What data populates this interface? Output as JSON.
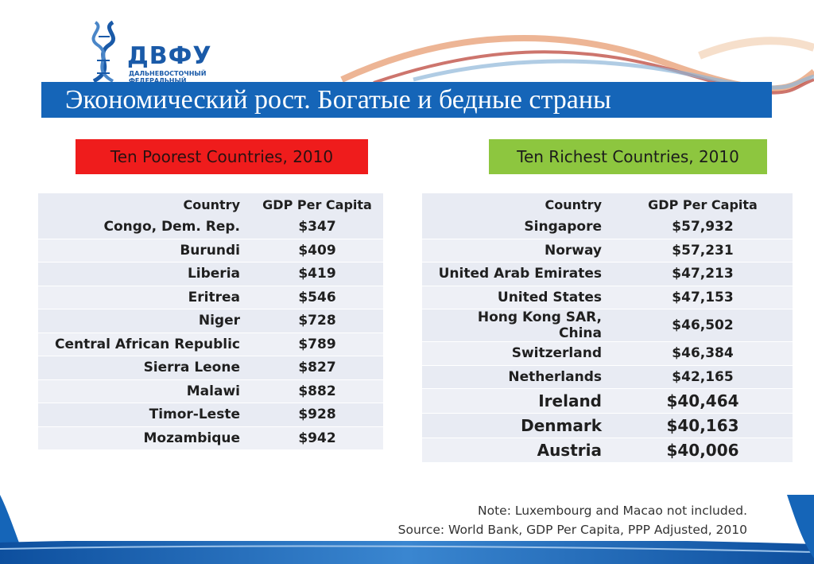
{
  "logo": {
    "name": "ДВФУ",
    "subtitle_lines": [
      "ДАЛЬНЕВОСТОЧНЫЙ",
      "ФЕДЕРАЛЬНЫЙ"
    ]
  },
  "title": "Экономический рост.  Богатые и бедные страны",
  "poorest": {
    "label": "Ten Poorest Countries, 2010",
    "header": {
      "country": "Country",
      "gdp": "GDP Per Capita"
    },
    "rows": [
      {
        "country": "Congo, Dem. Rep.",
        "gdp": "$347"
      },
      {
        "country": "Burundi",
        "gdp": "$409"
      },
      {
        "country": "Liberia",
        "gdp": "$419"
      },
      {
        "country": "Eritrea",
        "gdp": "$546"
      },
      {
        "country": "Niger",
        "gdp": "$728"
      },
      {
        "country": "Central African Republic",
        "gdp": "$789"
      },
      {
        "country": "Sierra Leone",
        "gdp": "$827"
      },
      {
        "country": "Malawi",
        "gdp": "$882"
      },
      {
        "country": "Timor-Leste",
        "gdp": "$928"
      },
      {
        "country": "Mozambique",
        "gdp": "$942"
      }
    ]
  },
  "richest": {
    "label": "Ten Richest Countries, 2010",
    "header": {
      "country": "Country",
      "gdp": "GDP Per Capita"
    },
    "rows": [
      {
        "country": "Singapore",
        "gdp": "$57,932"
      },
      {
        "country": "Norway",
        "gdp": "$57,231"
      },
      {
        "country": "United Arab Emirates",
        "gdp": "$47,213"
      },
      {
        "country": "United States",
        "gdp": "$47,153"
      },
      {
        "country": "Hong Kong SAR, China",
        "gdp": "$46,502"
      },
      {
        "country": "Switzerland",
        "gdp": "$46,384"
      },
      {
        "country": "Netherlands",
        "gdp": "$42,165"
      },
      {
        "country": "Ireland",
        "gdp": "$40,464"
      },
      {
        "country": "Denmark",
        "gdp": "$40,163"
      },
      {
        "country": "Austria",
        "gdp": "$40,006"
      }
    ]
  },
  "note": "Note: Luxembourg and Macao not included.",
  "source": "Source: World Bank, GDP Per Capita, PPP Adjusted, 2010",
  "colors": {
    "title_bar": "#1565b8",
    "poor_label": "#ef1c1c",
    "rich_label": "#8dc63f",
    "brand_blue": "#1a5aa8"
  }
}
